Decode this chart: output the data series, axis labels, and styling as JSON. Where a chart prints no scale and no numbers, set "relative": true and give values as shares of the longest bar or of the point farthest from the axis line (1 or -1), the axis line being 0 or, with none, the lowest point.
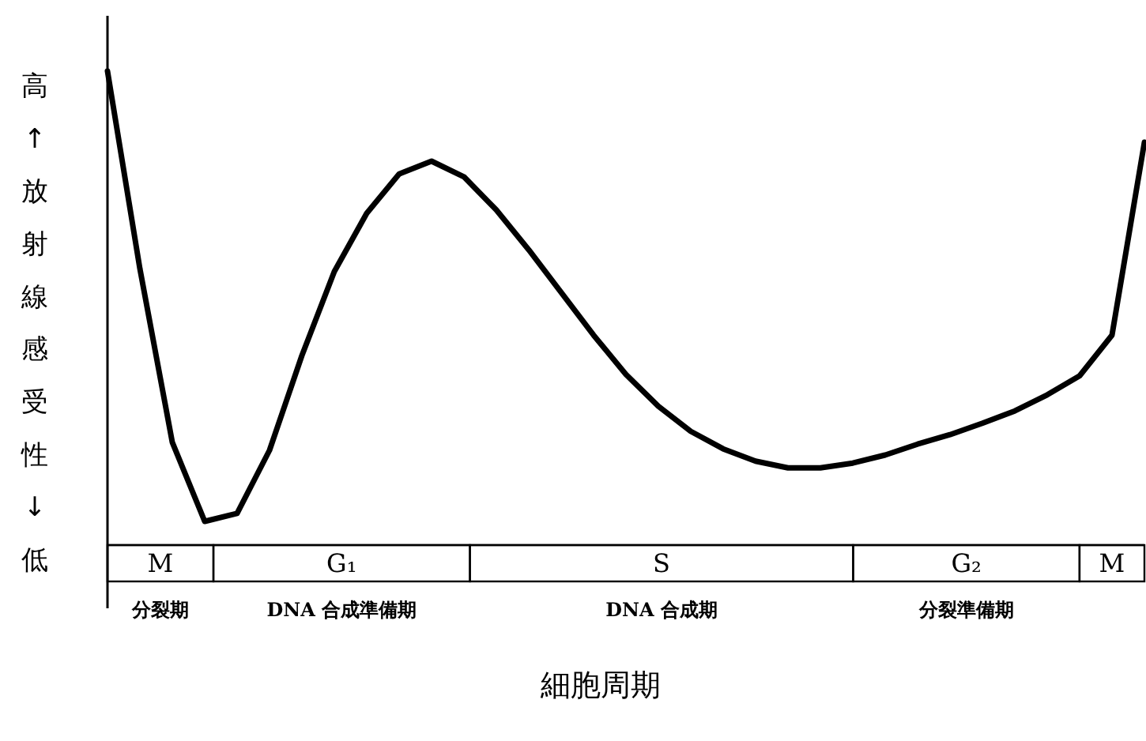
{
  "chart_data": {
    "type": "line",
    "relative": true,
    "categories": [
      null,
      null,
      null,
      null,
      null,
      null,
      null,
      null,
      null,
      null,
      null,
      null,
      null,
      null,
      null,
      null,
      null,
      null,
      null,
      null,
      null,
      null,
      null,
      null,
      null,
      null,
      null,
      null,
      null,
      null,
      null,
      null,
      null
    ],
    "series": [
      {
        "color": "#000000",
        "values": [
          1.0,
          0.583,
          0.217,
          0.05,
          0.067,
          0.2,
          0.4,
          0.577,
          0.7,
          0.783,
          0.81,
          0.777,
          0.707,
          0.623,
          0.533,
          0.443,
          0.36,
          0.293,
          0.24,
          0.203,
          0.177,
          0.163,
          0.163,
          0.173,
          0.19,
          0.213,
          0.233,
          0.257,
          0.283,
          0.317,
          0.357,
          0.443,
          0.85
        ]
      }
    ],
    "ylabel": "高↑放射線感受性↓低",
    "xlabel": "細胞周期",
    "annotations": [
      "M",
      "G₁",
      "S",
      "G₂",
      "M",
      "分裂期",
      "DNA 合成準備期",
      "DNA 合成期",
      "分裂準備期"
    ]
  }
}
